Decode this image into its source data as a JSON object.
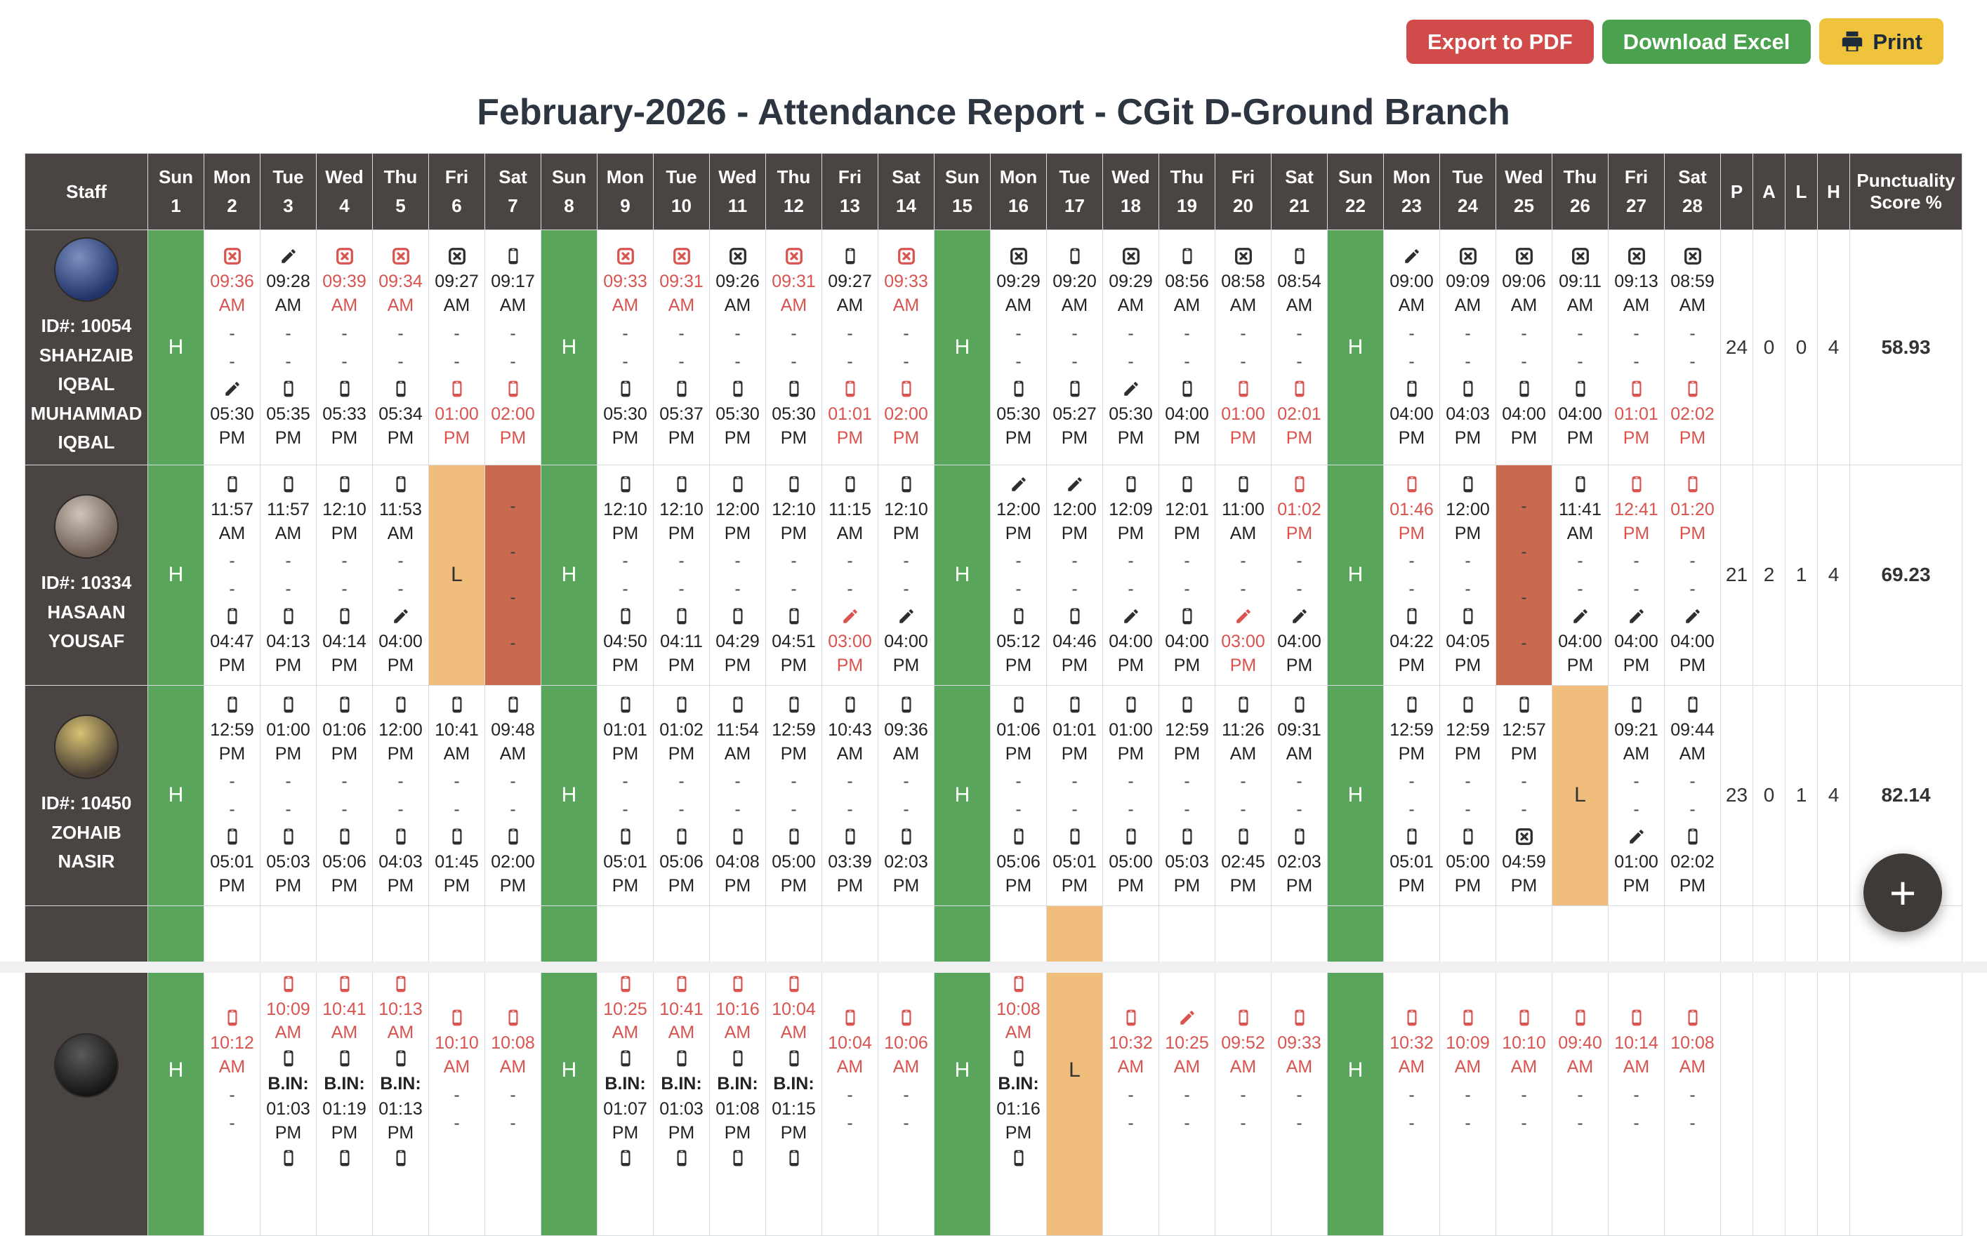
{
  "toolbar": {
    "export_pdf": "Export to PDF",
    "download_excel": "Download Excel",
    "print": "Print"
  },
  "title": "February-2026 - Attendance Report - CGit D-Ground Branch",
  "fab_label": "+",
  "colors": {
    "holiday_green": "#5aa55c",
    "leave_orange": "#f1bd7d",
    "absent_red": "#c96a4f",
    "late_text_red": "#d9534f",
    "header_dark": "#4a4542",
    "pdf_button": "#d14b4b",
    "excel_button": "#4aa14e",
    "print_button": "#efc33c"
  },
  "icons": {
    "m": "phone-checkin-icon",
    "p": "pencil-edit-icon",
    "x": "x-square-missed-icon"
  },
  "table": {
    "staff_header": "Staff",
    "summary_headers": [
      "P",
      "A",
      "L",
      "H"
    ],
    "punctuality_header": "Punctuality Score %",
    "days": [
      [
        "Sun",
        1
      ],
      [
        "Mon",
        2
      ],
      [
        "Tue",
        3
      ],
      [
        "Wed",
        4
      ],
      [
        "Thu",
        5
      ],
      [
        "Fri",
        6
      ],
      [
        "Sat",
        7
      ],
      [
        "Sun",
        8
      ],
      [
        "Mon",
        9
      ],
      [
        "Tue",
        10
      ],
      [
        "Wed",
        11
      ],
      [
        "Thu",
        12
      ],
      [
        "Fri",
        13
      ],
      [
        "Sat",
        14
      ],
      [
        "Sun",
        15
      ],
      [
        "Mon",
        16
      ],
      [
        "Tue",
        17
      ],
      [
        "Wed",
        18
      ],
      [
        "Thu",
        19
      ],
      [
        "Fri",
        20
      ],
      [
        "Sat",
        21
      ],
      [
        "Sun",
        22
      ],
      [
        "Mon",
        23
      ],
      [
        "Tue",
        24
      ],
      [
        "Wed",
        25
      ],
      [
        "Thu",
        26
      ],
      [
        "Fri",
        27
      ],
      [
        "Sat",
        28
      ]
    ]
  },
  "rows": [
    {
      "id_label": "ID#: 10054",
      "name": "SHAHZAIB IQBAL MUHAMMAD IQBAL",
      "summary": {
        "p": "24",
        "a": "0",
        "l": "0",
        "h": "4",
        "score": "58.93"
      },
      "cells": [
        {
          "s": "H"
        },
        {
          "i": [
            "x",
            "09:36 AM",
            "r"
          ],
          "o": [
            "p",
            "05:30 PM"
          ]
        },
        {
          "i": [
            "p",
            "09:28 AM"
          ],
          "o": [
            "m",
            "05:35 PM"
          ]
        },
        {
          "i": [
            "x",
            "09:39 AM",
            "r"
          ],
          "o": [
            "m",
            "05:33 PM"
          ]
        },
        {
          "i": [
            "x",
            "09:34 AM",
            "r"
          ],
          "o": [
            "m",
            "05:34 PM"
          ]
        },
        {
          "i": [
            "x",
            "09:27 AM"
          ],
          "o": [
            "m",
            "01:00 PM",
            "r"
          ]
        },
        {
          "i": [
            "m",
            "09:17 AM"
          ],
          "o": [
            "m",
            "02:00 PM",
            "r"
          ]
        },
        {
          "s": "H"
        },
        {
          "i": [
            "x",
            "09:33 AM",
            "r"
          ],
          "o": [
            "m",
            "05:30 PM"
          ]
        },
        {
          "i": [
            "x",
            "09:31 AM",
            "r"
          ],
          "o": [
            "m",
            "05:37 PM"
          ]
        },
        {
          "i": [
            "x",
            "09:26 AM"
          ],
          "o": [
            "m",
            "05:30 PM"
          ]
        },
        {
          "i": [
            "x",
            "09:31 AM",
            "r"
          ],
          "o": [
            "m",
            "05:30 PM"
          ]
        },
        {
          "i": [
            "m",
            "09:27 AM"
          ],
          "o": [
            "m",
            "01:01 PM",
            "r"
          ]
        },
        {
          "i": [
            "x",
            "09:33 AM",
            "r"
          ],
          "o": [
            "m",
            "02:00 PM",
            "r"
          ]
        },
        {
          "s": "H"
        },
        {
          "i": [
            "x",
            "09:29 AM"
          ],
          "o": [
            "m",
            "05:30 PM"
          ]
        },
        {
          "i": [
            "m",
            "09:20 AM"
          ],
          "o": [
            "m",
            "05:27 PM"
          ]
        },
        {
          "i": [
            "x",
            "09:29 AM"
          ],
          "o": [
            "p",
            "05:30 PM"
          ]
        },
        {
          "i": [
            "m",
            "08:56 AM"
          ],
          "o": [
            "m",
            "04:00 PM"
          ]
        },
        {
          "i": [
            "x",
            "08:58 AM"
          ],
          "o": [
            "m",
            "01:00 PM",
            "r"
          ]
        },
        {
          "i": [
            "m",
            "08:54 AM"
          ],
          "o": [
            "m",
            "02:01 PM",
            "r"
          ]
        },
        {
          "s": "H"
        },
        {
          "i": [
            "p",
            "09:00 AM"
          ],
          "o": [
            "m",
            "04:00 PM"
          ]
        },
        {
          "i": [
            "x",
            "09:09 AM"
          ],
          "o": [
            "m",
            "04:03 PM"
          ]
        },
        {
          "i": [
            "x",
            "09:06 AM"
          ],
          "o": [
            "m",
            "04:00 PM"
          ]
        },
        {
          "i": [
            "x",
            "09:11 AM"
          ],
          "o": [
            "m",
            "04:00 PM"
          ]
        },
        {
          "i": [
            "x",
            "09:13 AM"
          ],
          "o": [
            "m",
            "01:01 PM",
            "r"
          ]
        },
        {
          "i": [
            "x",
            "08:59 AM"
          ],
          "o": [
            "m",
            "02:02 PM",
            "r"
          ]
        }
      ]
    },
    {
      "id_label": "ID#: 10334",
      "name": "HASAAN YOUSAF",
      "summary": {
        "p": "21",
        "a": "2",
        "l": "1",
        "h": "4",
        "score": "69.23"
      },
      "cells": [
        {
          "s": "H"
        },
        {
          "i": [
            "m",
            "11:57 AM"
          ],
          "o": [
            "m",
            "04:47 PM"
          ]
        },
        {
          "i": [
            "m",
            "11:57 AM"
          ],
          "o": [
            "m",
            "04:13 PM"
          ]
        },
        {
          "i": [
            "m",
            "12:10 PM"
          ],
          "o": [
            "m",
            "04:14 PM"
          ]
        },
        {
          "i": [
            "m",
            "11:53 AM"
          ],
          "o": [
            "p",
            "04:00 PM"
          ]
        },
        {
          "s": "L"
        },
        {
          "s": "A"
        },
        {
          "s": "H"
        },
        {
          "i": [
            "m",
            "12:10 PM"
          ],
          "o": [
            "m",
            "04:50 PM"
          ]
        },
        {
          "i": [
            "m",
            "12:10 PM"
          ],
          "o": [
            "m",
            "04:11 PM"
          ]
        },
        {
          "i": [
            "m",
            "12:00 PM"
          ],
          "o": [
            "m",
            "04:29 PM"
          ]
        },
        {
          "i": [
            "m",
            "12:10 PM"
          ],
          "o": [
            "m",
            "04:51 PM"
          ]
        },
        {
          "i": [
            "m",
            "11:15 AM"
          ],
          "o": [
            "p",
            "03:00 PM",
            "r"
          ]
        },
        {
          "i": [
            "m",
            "12:10 PM"
          ],
          "o": [
            "p",
            "04:00 PM"
          ]
        },
        {
          "s": "H"
        },
        {
          "i": [
            "p",
            "12:00 PM"
          ],
          "o": [
            "m",
            "05:12 PM"
          ]
        },
        {
          "i": [
            "p",
            "12:00 PM"
          ],
          "o": [
            "m",
            "04:46 PM"
          ]
        },
        {
          "i": [
            "m",
            "12:09 PM"
          ],
          "o": [
            "p",
            "04:00 PM"
          ]
        },
        {
          "i": [
            "m",
            "12:01 PM"
          ],
          "o": [
            "m",
            "04:00 PM"
          ]
        },
        {
          "i": [
            "m",
            "11:00 AM"
          ],
          "o": [
            "p",
            "03:00 PM",
            "r"
          ]
        },
        {
          "i": [
            "m",
            "01:02 PM",
            "r"
          ],
          "o": [
            "p",
            "04:00 PM"
          ]
        },
        {
          "s": "H"
        },
        {
          "i": [
            "m",
            "01:46 PM",
            "r"
          ],
          "o": [
            "m",
            "04:22 PM"
          ]
        },
        {
          "i": [
            "m",
            "12:00 PM"
          ],
          "o": [
            "m",
            "04:05 PM"
          ]
        },
        {
          "s": "A"
        },
        {
          "i": [
            "m",
            "11:41 AM"
          ],
          "o": [
            "p",
            "04:00 PM"
          ]
        },
        {
          "i": [
            "m",
            "12:41 PM",
            "r"
          ],
          "o": [
            "p",
            "04:00 PM"
          ]
        },
        {
          "i": [
            "m",
            "01:20 PM",
            "r"
          ],
          "o": [
            "p",
            "04:00 PM"
          ]
        }
      ]
    },
    {
      "id_label": "ID#: 10450",
      "name": "ZOHAIB NASIR",
      "summary": {
        "p": "23",
        "a": "0",
        "l": "1",
        "h": "4",
        "score": "82.14"
      },
      "cells": [
        {
          "s": "H"
        },
        {
          "i": [
            "m",
            "12:59 PM"
          ],
          "o": [
            "m",
            "05:01 PM"
          ]
        },
        {
          "i": [
            "m",
            "01:00 PM"
          ],
          "o": [
            "m",
            "05:03 PM"
          ]
        },
        {
          "i": [
            "m",
            "01:06 PM"
          ],
          "o": [
            "m",
            "05:06 PM"
          ]
        },
        {
          "i": [
            "m",
            "12:00 PM"
          ],
          "o": [
            "m",
            "04:03 PM"
          ]
        },
        {
          "i": [
            "m",
            "10:41 AM"
          ],
          "o": [
            "m",
            "01:45 PM"
          ]
        },
        {
          "i": [
            "m",
            "09:48 AM"
          ],
          "o": [
            "m",
            "02:00 PM"
          ]
        },
        {
          "s": "H"
        },
        {
          "i": [
            "m",
            "01:01 PM"
          ],
          "o": [
            "m",
            "05:01 PM"
          ]
        },
        {
          "i": [
            "m",
            "01:02 PM"
          ],
          "o": [
            "m",
            "05:06 PM"
          ]
        },
        {
          "i": [
            "m",
            "11:54 AM"
          ],
          "o": [
            "m",
            "04:08 PM"
          ]
        },
        {
          "i": [
            "m",
            "12:59 PM"
          ],
          "o": [
            "m",
            "05:00 PM"
          ]
        },
        {
          "i": [
            "m",
            "10:43 AM"
          ],
          "o": [
            "m",
            "03:39 PM"
          ]
        },
        {
          "i": [
            "m",
            "09:36 AM"
          ],
          "o": [
            "m",
            "02:03 PM"
          ]
        },
        {
          "s": "H"
        },
        {
          "i": [
            "m",
            "01:06 PM"
          ],
          "o": [
            "m",
            "05:06 PM"
          ]
        },
        {
          "i": [
            "m",
            "01:01 PM"
          ],
          "o": [
            "m",
            "05:01 PM"
          ]
        },
        {
          "i": [
            "m",
            "01:00 PM"
          ],
          "o": [
            "m",
            "05:00 PM"
          ]
        },
        {
          "i": [
            "m",
            "12:59 PM"
          ],
          "o": [
            "m",
            "05:03 PM"
          ]
        },
        {
          "i": [
            "m",
            "11:26 AM"
          ],
          "o": [
            "m",
            "02:45 PM"
          ]
        },
        {
          "i": [
            "m",
            "09:31 AM"
          ],
          "o": [
            "m",
            "02:03 PM"
          ]
        },
        {
          "s": "H"
        },
        {
          "i": [
            "m",
            "12:59 PM"
          ],
          "o": [
            "m",
            "05:01 PM"
          ]
        },
        {
          "i": [
            "m",
            "12:59 PM"
          ],
          "o": [
            "m",
            "05:00 PM"
          ]
        },
        {
          "i": [
            "m",
            "12:57 PM"
          ],
          "o": [
            "x",
            "04:59 PM"
          ]
        },
        {
          "s": "L"
        },
        {
          "i": [
            "m",
            "09:21 AM"
          ],
          "o": [
            "p",
            "01:00 PM"
          ]
        },
        {
          "i": [
            "m",
            "09:44 AM"
          ],
          "o": [
            "m",
            "02:02 PM"
          ]
        }
      ]
    },
    {
      "id_label": "",
      "name": "",
      "summary": {
        "p": "",
        "a": "",
        "l": "",
        "h": "",
        "score": ""
      },
      "cells": [
        {
          "s": "H"
        },
        {
          "i": [
            "m",
            "10:12 AM",
            "r"
          ],
          "d": true
        },
        {
          "i": [
            "m",
            "10:09 AM",
            "r"
          ],
          "b": [
            "m",
            "B.IN:",
            "01:03 PM"
          ]
        },
        {
          "i": [
            "m",
            "10:41 AM",
            "r"
          ],
          "b": [
            "m",
            "B.IN:",
            "01:19 PM"
          ]
        },
        {
          "i": [
            "m",
            "10:13 AM",
            "r"
          ],
          "b": [
            "m",
            "B.IN:",
            "01:13 PM"
          ]
        },
        {
          "i": [
            "m",
            "10:10 AM",
            "r"
          ],
          "d": true
        },
        {
          "i": [
            "m",
            "10:08 AM",
            "r"
          ],
          "d": true
        },
        {
          "s": "H"
        },
        {
          "i": [
            "m",
            "10:25 AM",
            "r"
          ],
          "b": [
            "m",
            "B.IN:",
            "01:07 PM"
          ]
        },
        {
          "i": [
            "m",
            "10:41 AM",
            "r"
          ],
          "b": [
            "m",
            "B.IN:",
            "01:03 PM"
          ]
        },
        {
          "i": [
            "m",
            "10:16 AM",
            "r"
          ],
          "b": [
            "m",
            "B.IN:",
            "01:08 PM"
          ]
        },
        {
          "i": [
            "m",
            "10:04 AM",
            "r"
          ],
          "b": [
            "m",
            "B.IN:",
            "01:15 PM"
          ]
        },
        {
          "i": [
            "m",
            "10:04 AM",
            "r"
          ],
          "d": true
        },
        {
          "i": [
            "m",
            "10:06 AM",
            "r"
          ],
          "d": true
        },
        {
          "s": "H"
        },
        {
          "i": [
            "m",
            "10:08 AM",
            "r"
          ],
          "b": [
            "m",
            "B.IN:",
            "01:16 PM"
          ]
        },
        {
          "s": "L"
        },
        {
          "i": [
            "m",
            "10:32 AM",
            "r"
          ],
          "d": true
        },
        {
          "i": [
            "p",
            "10:25 AM",
            "r"
          ],
          "d": true
        },
        {
          "i": [
            "m",
            "09:52 AM",
            "r"
          ],
          "d": true
        },
        {
          "i": [
            "m",
            "09:33 AM",
            "r"
          ],
          "d": true
        },
        {
          "s": "H"
        },
        {
          "i": [
            "m",
            "10:32 AM",
            "r"
          ],
          "d": true
        },
        {
          "i": [
            "m",
            "10:09 AM",
            "r"
          ],
          "d": true
        },
        {
          "i": [
            "m",
            "10:10 AM",
            "r"
          ],
          "d": true
        },
        {
          "i": [
            "m",
            "09:40 AM",
            "r"
          ],
          "d": true
        },
        {
          "i": [
            "m",
            "10:14 AM",
            "r"
          ],
          "d": true
        },
        {
          "i": [
            "m",
            "10:08 AM",
            "r"
          ],
          "d": true
        }
      ]
    }
  ]
}
